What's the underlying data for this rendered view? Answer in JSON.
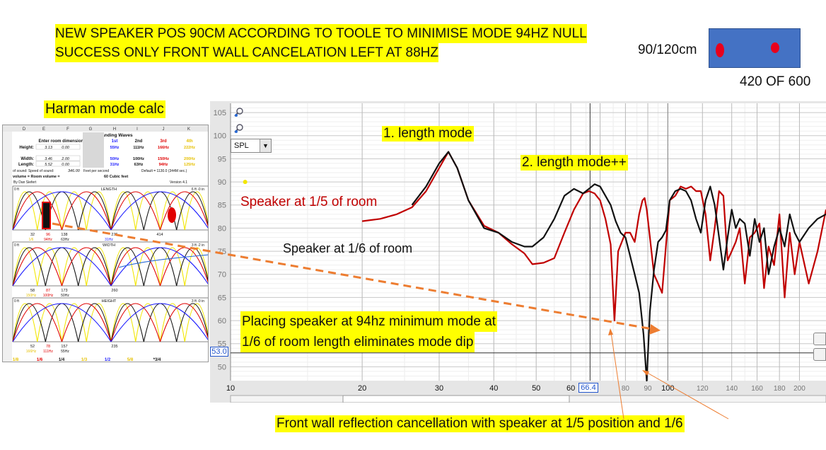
{
  "headline": {
    "line1": "NEW SPEAKER POS 90CM ACCORDING TO TOOLE TO MINIMISE MODE  94HZ NULL",
    "line2": "SUCCESS ONLY  FRONT WALL CANCELATION LEFT AT 88HZ"
  },
  "room_diagram": {
    "position_label": "90/120cm",
    "size_label": "420 OF 600"
  },
  "harman_label": "Harman mode calc",
  "spreadsheet": {
    "col_headers": [
      "D",
      "E",
      "F",
      "G",
      "H",
      "I",
      "J",
      "K"
    ],
    "title": "Axial Standing Waves",
    "enter_dims": "Enter room dimensions:",
    "order_headers": [
      "1st",
      "2nd",
      "3rd",
      "4th"
    ],
    "rows": [
      {
        "label": "Height:",
        "values": [
          "3.13",
          "0.00"
        ],
        "modes": [
          "55Hz",
          "111Hz",
          "166Hz",
          "222Hz"
        ]
      },
      {
        "label": "Width:",
        "values": [
          "3.46",
          "2.00"
        ],
        "modes": [
          "50Hz",
          "100Hz",
          "150Hz",
          "200Hz"
        ]
      },
      {
        "label": "Length:",
        "values": [
          "5.52",
          "0.00"
        ],
        "modes": [
          "31Hz",
          "63Hz",
          "94Hz",
          "125Hz"
        ]
      }
    ],
    "speed_label": "of sound:   Speed of sound:",
    "speed_value": "346.00",
    "speed_unit": "Feet per second",
    "speed_default": "Default = 1130.0 (344M sec.)",
    "volume_label": "volume = Room volume =",
    "volume_value": "60 Cubic feet",
    "author": "By Dan Siefert",
    "version": "Version 4.1",
    "panels": [
      {
        "name": "LENGTH",
        "left": "0 ft",
        "right": "6 ft -0 in",
        "ticks": [
          "32",
          "96",
          "138",
          "276",
          "414"
        ],
        "sub": [
          "1/6",
          "94Hz",
          "63Hz",
          "31Hz"
        ]
      },
      {
        "name": "WIDTH",
        "left": "0 ft",
        "right": "3 ft -2 in",
        "ticks": [
          "58",
          "87",
          "173",
          "260"
        ],
        "sub": [
          "150Hz",
          "100Hz",
          "50Hz"
        ]
      },
      {
        "name": "HEIGHT",
        "left": "0 ft",
        "right": "3 ft -0 in",
        "ticks": [
          "52",
          "78",
          "157",
          "235"
        ],
        "sub": [
          "166Hz",
          "111Hz",
          "55Hz"
        ]
      }
    ],
    "fractions": [
      "1/8",
      "1/6",
      "1/4",
      "1/3",
      "1/2",
      "5/8",
      "*3/4"
    ]
  },
  "chart_controls": {
    "spl_select": "SPL",
    "cursor_value": "53.0",
    "freq_cursor": "66.4"
  },
  "annotations": {
    "length_mode_1": "1. length mode",
    "length_mode_2": "2. length mode++",
    "speaker_1_5": "Speaker at 1/5 of room",
    "speaker_1_6": "Speaker at 1/6 of room",
    "placing_line1": "Placing speaker at 94hz minimum mode at",
    "placing_line2": "1/6 of room length eliminates mode dip",
    "front_wall": "Front wall reflection cancellation with speaker at 1/5 position and 1/6"
  },
  "chart_data": {
    "type": "line",
    "xscale": "log",
    "xlim": [
      10,
      230
    ],
    "ylim": [
      47,
      107
    ],
    "x_ticks": [
      10,
      20,
      30,
      40,
      50,
      60,
      70,
      80,
      90,
      100,
      120,
      140,
      160,
      180,
      200
    ],
    "x_tick_labels": [
      "10",
      "20",
      "30",
      "40",
      "50",
      "60",
      "",
      "80",
      "90",
      "100",
      "120",
      "140",
      "160",
      "180",
      "200"
    ],
    "y_ticks": [
      50,
      55,
      60,
      65,
      70,
      75,
      80,
      85,
      90,
      95,
      100,
      105
    ],
    "series": [
      {
        "name": "Speaker at 1/5 of room",
        "color": "#c00000",
        "x": [
          20,
          22,
          24,
          26,
          28,
          30,
          31.5,
          33,
          35,
          38,
          41,
          44,
          47,
          49,
          52,
          55,
          58,
          61,
          64,
          66,
          68,
          70,
          72,
          74,
          75.5,
          77,
          80,
          82,
          84,
          86,
          87.5,
          88.5,
          89.5,
          91,
          93,
          95,
          97,
          99,
          101,
          104,
          107,
          110,
          113,
          116,
          119,
          122,
          125,
          128,
          131,
          134,
          137,
          140,
          143,
          146,
          150,
          154,
          158,
          162,
          166,
          170,
          175,
          180,
          185,
          190,
          195,
          200,
          210,
          220,
          230
        ],
        "y": [
          81.5,
          82,
          83,
          84.5,
          88,
          93,
          96.5,
          93,
          86,
          80.5,
          79,
          76.5,
          74.5,
          72.2,
          72.5,
          73.5,
          79,
          84,
          87.5,
          88,
          87.5,
          86,
          82,
          76.5,
          60,
          75,
          79,
          79,
          77,
          83,
          86,
          86.5,
          84,
          78,
          70,
          68,
          66,
          76,
          86,
          87,
          89,
          88.5,
          89,
          88,
          88,
          83,
          73,
          80,
          88,
          87,
          73,
          75,
          77,
          80,
          68,
          78,
          79,
          81,
          67,
          76,
          72,
          83,
          65,
          79,
          70,
          77,
          68,
          75,
          84
        ]
      },
      {
        "name": "Speaker at 1/6 of room",
        "color": "#111111",
        "x": [
          26,
          28,
          30,
          31.5,
          33,
          35,
          38,
          41,
          44,
          47,
          49,
          52,
          55,
          58,
          61,
          64,
          66,
          68,
          70,
          72,
          74,
          76,
          78,
          80,
          82,
          84,
          86,
          88,
          89.5,
          91,
          93,
          95,
          97,
          99,
          101,
          104,
          107,
          110,
          113,
          116,
          119,
          122,
          125,
          128,
          131,
          134,
          137,
          140,
          143,
          146,
          150,
          154,
          158,
          162,
          166,
          170,
          175,
          180,
          185,
          190,
          195,
          200,
          210,
          220,
          230
        ],
        "y": [
          85,
          89,
          94,
          96.5,
          93,
          86,
          80,
          79,
          77,
          76,
          76,
          78,
          82,
          87,
          88.5,
          87.5,
          88.5,
          89.5,
          89,
          87,
          85,
          81.5,
          79,
          78,
          74,
          70,
          66,
          57,
          47,
          62,
          71,
          77,
          78,
          79.5,
          86,
          88,
          88.5,
          88,
          86,
          82,
          79,
          86,
          89,
          85,
          78,
          71,
          78,
          84,
          80,
          82,
          81,
          74,
          82,
          77,
          80,
          70,
          76,
          80,
          76,
          83,
          79,
          77,
          80,
          82,
          83
        ]
      }
    ]
  }
}
